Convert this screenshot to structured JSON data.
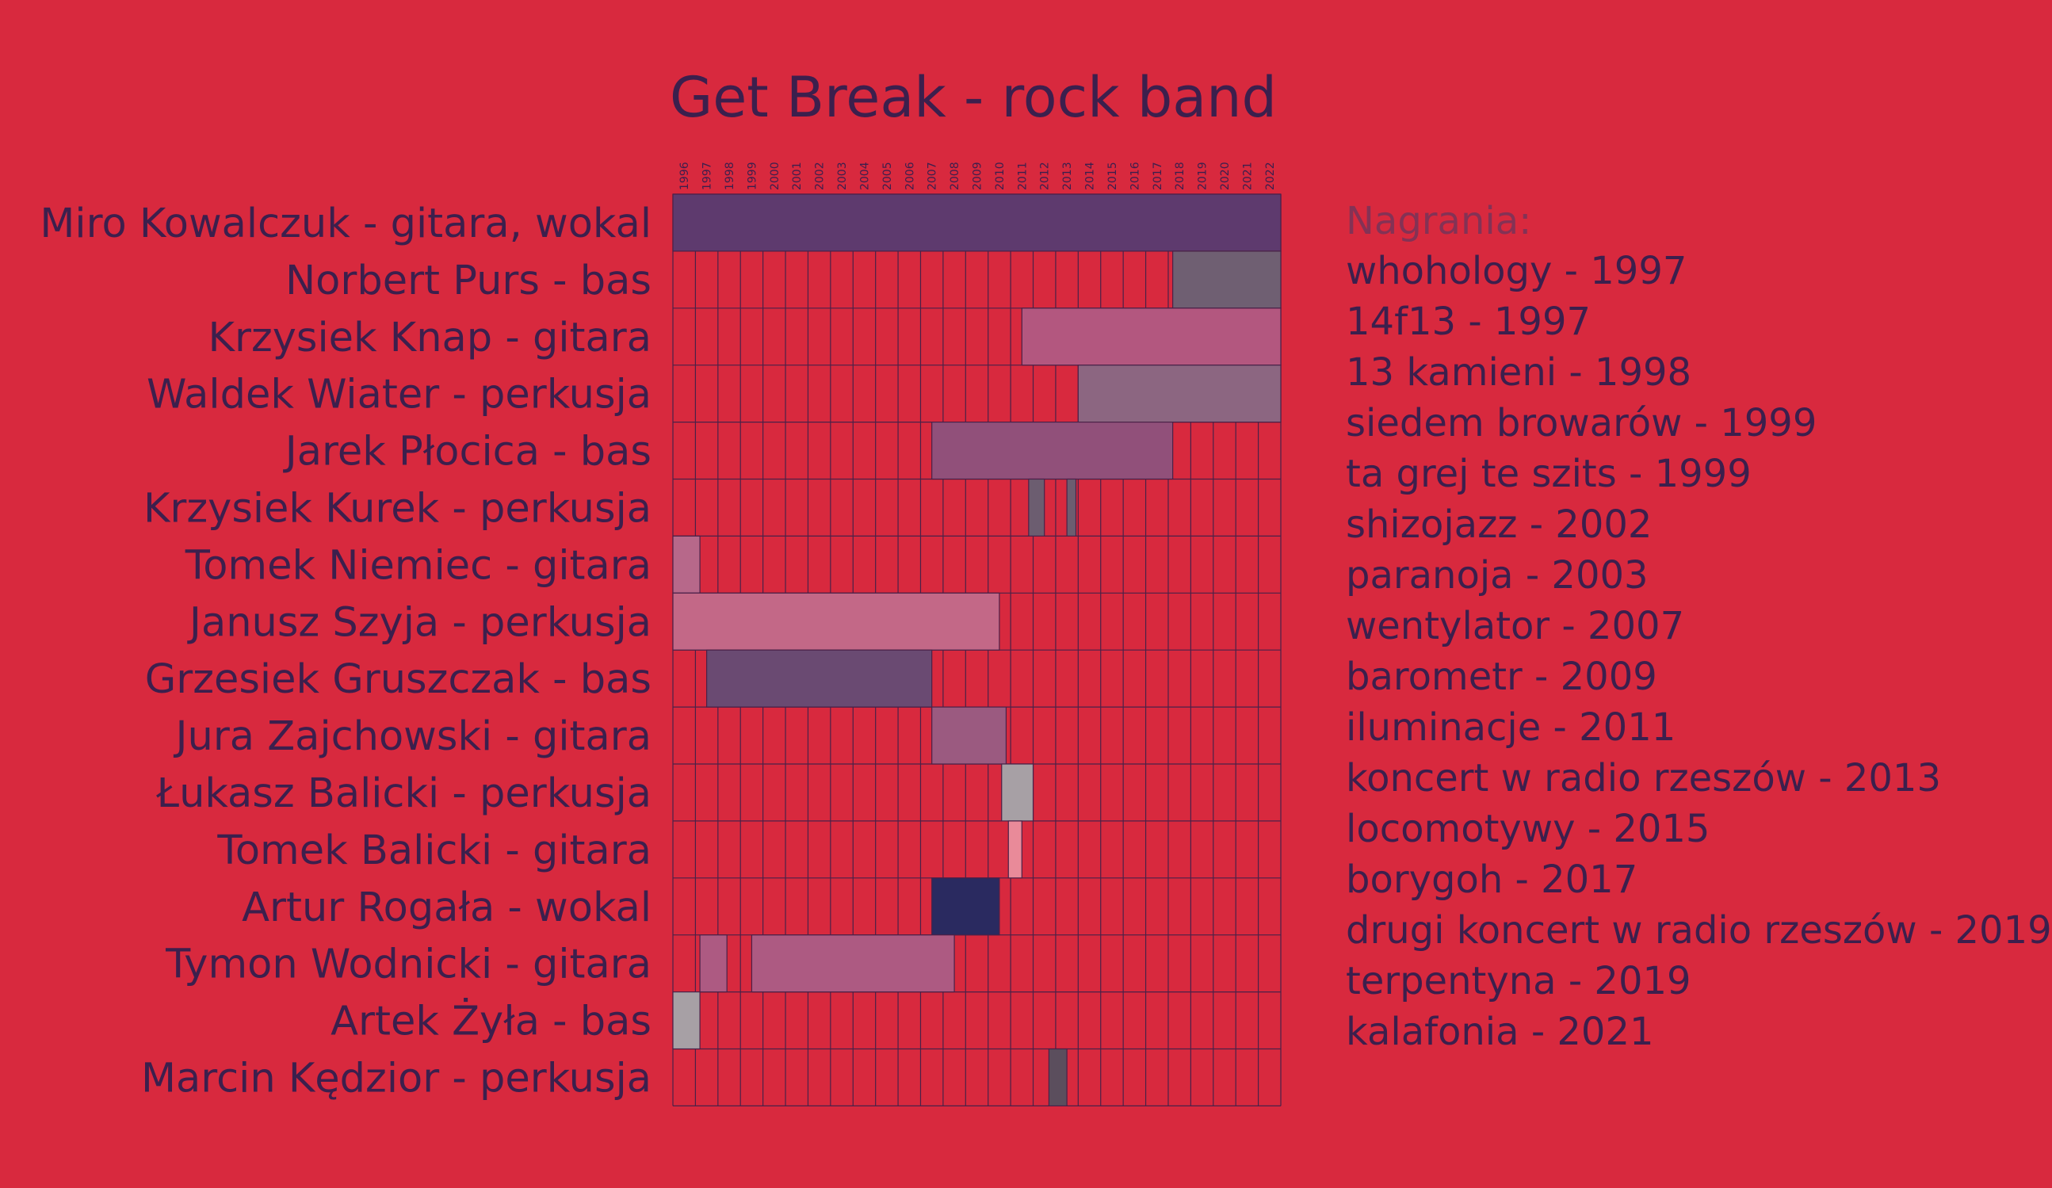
{
  "title": "Get Break - rock band",
  "recordings": {
    "heading": "Nagrania:",
    "items": [
      "whohology - 1997",
      "14f13 - 1997",
      "13 kamieni - 1998",
      "siedem browarów - 1999",
      "ta grej te szits - 1999",
      "shizojazz - 2002",
      "paranoja - 2003",
      "wentylator - 2007",
      "barometr - 2009",
      "iluminacje - 2011",
      "koncert w radio rzeszów - 2013",
      "locomotywy - 2015",
      "borygoh - 2017",
      "drugi koncert w radio rzeszów - 2019",
      "terpentyna - 2019",
      "kalafonia - 2021"
    ]
  },
  "chart_data": {
    "type": "timeline",
    "title": "Get Break - rock band",
    "years": [
      "1996",
      "1997",
      "1998",
      "1999",
      "2000",
      "2001",
      "2002",
      "2003",
      "2004",
      "2005",
      "2006",
      "2007",
      "2008",
      "2009",
      "2010",
      "2011",
      "2012",
      "2013",
      "2014",
      "2015",
      "2016",
      "2017",
      "2018",
      "2019",
      "2020",
      "2021",
      "2022"
    ],
    "x_range": [
      1996,
      2023
    ],
    "grid": true,
    "members": [
      {
        "label": "Miro Kowalczuk - gitara, wokal",
        "color": "#5e3a6e",
        "periods": [
          [
            1996,
            2023
          ]
        ]
      },
      {
        "label": "Norbert Purs - bas",
        "color": "#6f5f72",
        "periods": [
          [
            2018.2,
            2023
          ]
        ]
      },
      {
        "label": "Krzysiek Knap - gitara",
        "color": "#b3577f",
        "periods": [
          [
            2011.5,
            2023
          ]
        ]
      },
      {
        "label": "Waldek Wiater - perkusja",
        "color": "#8c6681",
        "periods": [
          [
            2014,
            2023
          ]
        ]
      },
      {
        "label": "Jarek Płocica - bas",
        "color": "#91507a",
        "periods": [
          [
            2007.5,
            2018.2
          ]
        ]
      },
      {
        "label": "Krzysiek Kurek - perkusja",
        "color": "#6c5d70",
        "periods": [
          [
            2011.8,
            2012.5
          ],
          [
            2013.5,
            2013.9
          ]
        ]
      },
      {
        "label": "Tomek Niemiec - gitara",
        "color": "#b7688a",
        "periods": [
          [
            1996,
            1997.2
          ]
        ]
      },
      {
        "label": "Janusz Szyja - perkusja",
        "color": "#c36887",
        "periods": [
          [
            1996,
            2010.5
          ]
        ]
      },
      {
        "label": "Grzesiek Gruszczak - bas",
        "color": "#6a4a72",
        "periods": [
          [
            1997.5,
            2007.5
          ]
        ]
      },
      {
        "label": "Jura Zajchowski - gitara",
        "color": "#9b5a80",
        "periods": [
          [
            2007.5,
            2010.8
          ]
        ]
      },
      {
        "label": "Łukasz Balicki - perkusja",
        "color": "#a7a0a5",
        "periods": [
          [
            2010.6,
            2012
          ]
        ]
      },
      {
        "label": "Tomek Balicki - gitara",
        "color": "#e98a99",
        "periods": [
          [
            2010.9,
            2011.5
          ]
        ]
      },
      {
        "label": "Artur Rogała - wokal",
        "color": "#2a2a60",
        "periods": [
          [
            2007.5,
            2010.5
          ]
        ]
      },
      {
        "label": "Tymon Wodnicki - gitara",
        "color": "#ad5a82",
        "periods": [
          [
            1997.2,
            1998.4
          ],
          [
            1999.5,
            2008.5
          ]
        ]
      },
      {
        "label": "Artek Żyła - bas",
        "color": "#a7a0a5",
        "periods": [
          [
            1996,
            1997.2
          ]
        ]
      },
      {
        "label": "Marcin Kędzior - perkusja",
        "color": "#5b4e5d",
        "periods": [
          [
            2012.7,
            2013.5
          ]
        ]
      }
    ]
  }
}
